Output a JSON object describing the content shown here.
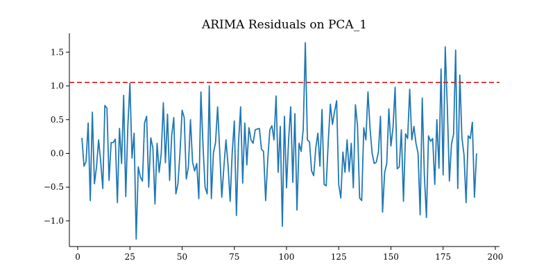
{
  "chart_data": {
    "type": "line",
    "title": "ARIMA Residuals on PCA_1",
    "xlabel": "",
    "ylabel": "",
    "xlim": [
      -4,
      202
    ],
    "ylim": [
      -1.38,
      1.78
    ],
    "x_ticks": [
      0,
      25,
      50,
      75,
      100,
      125,
      150,
      175,
      200
    ],
    "y_ticks": [
      -1.0,
      -0.5,
      0.0,
      0.5,
      1.0,
      1.5
    ],
    "x_tick_labels": [
      "0",
      "25",
      "50",
      "75",
      "100",
      "125",
      "150",
      "175",
      "200"
    ],
    "y_tick_labels": [
      "−1.0",
      "−0.5",
      "0.0",
      "0.5",
      "1.0",
      "1.5"
    ],
    "grid": false,
    "threshold": {
      "value": 1.05,
      "color": "#d62728",
      "style": "dashed"
    },
    "series": [
      {
        "color": "#1f77b4",
        "x_start": 2,
        "values": [
          0.23,
          -0.19,
          -0.12,
          0.45,
          -0.7,
          0.61,
          -0.45,
          -0.2,
          0.2,
          -0.12,
          -0.52,
          0.71,
          0.67,
          -0.4,
          0.16,
          0.16,
          0.21,
          -0.73,
          0.37,
          -0.15,
          0.86,
          -0.64,
          0.4,
          1.04,
          -0.07,
          0.3,
          -1.27,
          -0.2,
          -0.35,
          -0.41,
          0.45,
          0.55,
          -0.5,
          0.23,
          0.08,
          -0.75,
          0.15,
          -0.28,
          0.0,
          0.75,
          -0.14,
          0.58,
          -0.4,
          0.26,
          0.53,
          -0.6,
          -0.45,
          0.02,
          0.64,
          0.53,
          -0.38,
          -0.2,
          0.5,
          -0.13,
          -0.26,
          -0.15,
          -0.67,
          0.91,
          0.12,
          -0.5,
          -0.6,
          1.0,
          -0.67,
          0.01,
          0.16,
          0.69,
          0.03,
          -0.65,
          -0.2,
          0.2,
          -0.18,
          -0.71,
          0.02,
          0.48,
          -0.92,
          0.15,
          0.69,
          -0.44,
          0.45,
          -0.17,
          0.38,
          0.2,
          0.15,
          0.35,
          0.36,
          0.37,
          0.06,
          0.03,
          -0.7,
          -0.1,
          0.35,
          0.41,
          0.2,
          0.85,
          -0.28,
          0.4,
          -1.08,
          0.55,
          -0.51,
          0.2,
          0.69,
          -0.43,
          0.59,
          -0.84,
          0.15,
          0.03,
          0.36,
          1.64,
          0.2,
          0.17,
          -0.26,
          -0.33,
          0.08,
          0.3,
          -0.19,
          0.65,
          -0.46,
          -0.48,
          0.18,
          0.73,
          0.43,
          0.62,
          0.78,
          -0.46,
          -0.66,
          0.02,
          -0.28,
          0.2,
          -0.27,
          0.15,
          -0.51,
          0.72,
          0.41,
          -0.66,
          -0.7,
          0.38,
          0.2,
          0.91,
          0.37,
          0.0,
          -0.15,
          -0.13,
          0.02,
          0.55,
          -0.87,
          -0.28,
          -0.15,
          0.66,
          0.11,
          0.38,
          0.98,
          -0.23,
          -0.2,
          0.35,
          -0.71,
          0.29,
          0.22,
          0.95,
          0.2,
          0.4,
          0.15,
          0.0,
          -0.91,
          0.82,
          -0.31,
          -0.95,
          0.26,
          0.18,
          0.22,
          -0.46,
          0.5,
          -0.22,
          1.25,
          -0.32,
          1.58,
          0.7,
          -0.41,
          0.14,
          0.28,
          1.53,
          -0.52,
          1.16,
          0.23,
          -0.02,
          -0.73,
          0.26,
          0.22,
          0.46,
          -0.65,
          0.0
        ]
      }
    ]
  }
}
